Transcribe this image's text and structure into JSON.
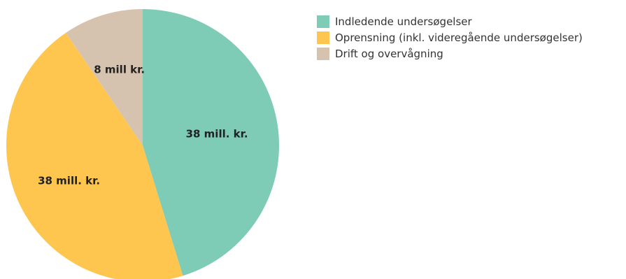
{
  "chart_data": {
    "type": "pie",
    "categories": [
      "Indledende undersøgelser",
      "Oprensning (inkl. videregående undersøgelser)",
      "Drift og overvågning"
    ],
    "values": [
      38,
      38,
      8
    ],
    "unit": "mill. kr.",
    "data_labels": [
      "38 mill. kr.",
      "38 mill. kr.",
      "8 mill kr."
    ],
    "colors": [
      "#7ecbb6",
      "#ffc64f",
      "#d6c3af"
    ],
    "legend_position": "right",
    "start_angle_deg": 0,
    "direction": "clockwise"
  }
}
